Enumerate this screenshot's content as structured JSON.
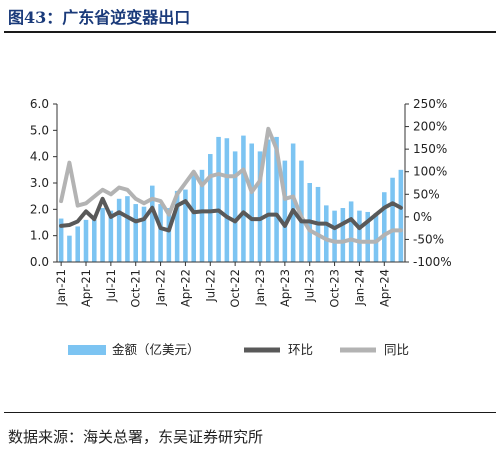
{
  "figure": {
    "title": "图43：广东省逆变器出口",
    "source": "数据来源：海关总署，东吴证券研究所"
  },
  "colors": {
    "bars": "#7CC4F2",
    "mom": "#595959",
    "yoy": "#B3B3B3"
  },
  "chart_data": {
    "type": "bar+line",
    "x": [
      "2021-01",
      "2021-02",
      "2021-03",
      "2021-04",
      "2021-05",
      "2021-06",
      "2021-07",
      "2021-08",
      "2021-09",
      "2021-10",
      "2021-11",
      "2021-12",
      "2022-01",
      "2022-02",
      "2022-03",
      "2022-04",
      "2022-05",
      "2022-06",
      "2022-07",
      "2022-08",
      "2022-09",
      "2022-10",
      "2022-11",
      "2022-12",
      "2023-01",
      "2023-02",
      "2023-03",
      "2023-04",
      "2023-05",
      "2023-06",
      "2023-07",
      "2023-08",
      "2023-09",
      "2023-10",
      "2023-11",
      "2023-12",
      "2024-01",
      "2024-02",
      "2024-03",
      "2024-04",
      "2024-05",
      "2024-06"
    ],
    "x_tick_labels": [
      "Jan-21",
      "Apr-21",
      "Jul-21",
      "Oct-21",
      "Jan-22",
      "Apr-22",
      "Jul-22",
      "Oct-22",
      "Jan-23",
      "Apr-23",
      "Jul-23",
      "Oct-23",
      "Jan-24",
      "Apr-24"
    ],
    "series": [
      {
        "name": "金额（亿美元）",
        "axis": "left",
        "kind": "bar",
        "values": [
          1.65,
          1.0,
          1.35,
          1.6,
          1.6,
          2.05,
          1.95,
          2.4,
          2.5,
          2.2,
          2.1,
          2.9,
          2.2,
          2.05,
          2.7,
          2.75,
          3.3,
          3.5,
          4.1,
          4.75,
          4.7,
          4.2,
          4.8,
          4.5,
          4.2,
          4.65,
          4.75,
          3.85,
          4.5,
          3.85,
          3.0,
          2.85,
          2.15,
          1.95,
          2.05,
          2.3,
          1.95,
          1.9,
          1.85,
          2.65,
          3.2,
          3.5
        ]
      },
      {
        "name": "环比",
        "axis": "right",
        "kind": "line",
        "values": [
          -20,
          -18,
          -10,
          12,
          -5,
          40,
          0,
          10,
          0,
          -10,
          -5,
          20,
          -25,
          -30,
          25,
          35,
          10,
          12,
          12,
          14,
          0,
          -10,
          10,
          -5,
          -5,
          5,
          5,
          -20,
          15,
          -10,
          -10,
          -15,
          -15,
          -25,
          -15,
          -5,
          -25,
          -10,
          5,
          20,
          30,
          20
        ]
      },
      {
        "name": "同比",
        "axis": "right",
        "kind": "line",
        "values": [
          35,
          120,
          25,
          30,
          45,
          60,
          50,
          65,
          60,
          40,
          30,
          40,
          35,
          5,
          50,
          75,
          100,
          70,
          90,
          95,
          90,
          90,
          105,
          55,
          80,
          195,
          150,
          40,
          45,
          0,
          -30,
          -40,
          -50,
          -55,
          -55,
          -50,
          -55,
          -55,
          -55,
          -40,
          -30,
          -30
        ]
      }
    ],
    "y_left": {
      "ylim": [
        0,
        6.0
      ],
      "ticks": [
        "0.0",
        "1.0",
        "2.0",
        "3.0",
        "4.0",
        "5.0",
        "6.0"
      ]
    },
    "y_right": {
      "ylim": [
        -100,
        250
      ],
      "ticks": [
        "-100%",
        "-50%",
        "0%",
        "50%",
        "100%",
        "150%",
        "200%",
        "250%"
      ]
    },
    "legend_position": "bottom",
    "grid": false
  }
}
